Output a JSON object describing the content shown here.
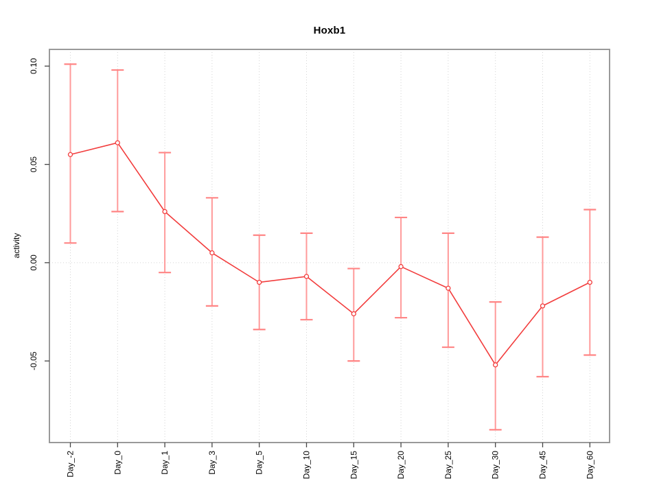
{
  "chart_data": {
    "type": "line",
    "title": "Hoxb1",
    "xlabel": "",
    "ylabel": "activity",
    "legend_position": "none",
    "marker": "open-circle",
    "grid": "dotted vertical gridline at each category; dotted horizontal line at y=0",
    "categories": [
      "Day_-2",
      "Day_0",
      "Day_1",
      "Day_3",
      "Day_5",
      "Day_10",
      "Day_15",
      "Day_20",
      "Day_25",
      "Day_30",
      "Day_45",
      "Day_60"
    ],
    "series": [
      {
        "name": "activity",
        "values": [
          0.055,
          0.061,
          0.026,
          0.005,
          -0.01,
          -0.007,
          -0.026,
          -0.002,
          -0.013,
          -0.052,
          -0.022,
          -0.01
        ],
        "error_upper": [
          0.101,
          0.098,
          0.056,
          0.033,
          0.014,
          0.015,
          -0.003,
          0.023,
          0.015,
          -0.02,
          0.013,
          0.027
        ],
        "error_lower": [
          0.01,
          0.026,
          -0.005,
          -0.022,
          -0.034,
          -0.029,
          -0.05,
          -0.028,
          -0.043,
          -0.085,
          -0.058,
          -0.047
        ]
      }
    ],
    "ylim": [
      -0.0915,
      0.1085
    ],
    "y_ticks": {
      "values": [
        0.1,
        0.05,
        0.0,
        -0.05
      ],
      "labels": [
        "0.10",
        "0.05",
        "0.00",
        "-0.05"
      ]
    },
    "colors": {
      "line": "#f23c3c",
      "marker_stroke": "#f23c3c",
      "marker_fill": "#ffffff",
      "error_bar": "#ff9a9a",
      "error_cap": "#ff8585",
      "grid": "#d2d2d2",
      "axis_box": "#999999",
      "tick": "#444444",
      "text": "#000000",
      "background": "#ffffff"
    }
  }
}
